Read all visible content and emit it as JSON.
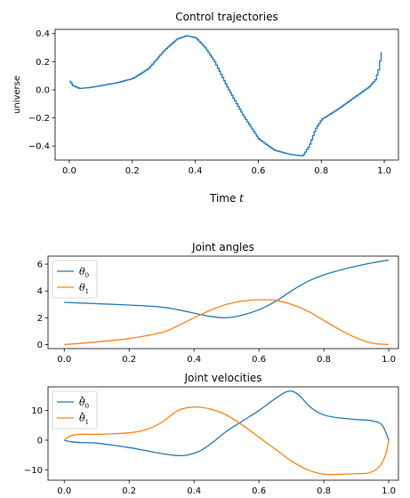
{
  "chart_data": [
    {
      "type": "line",
      "title": "Control trajectories",
      "xlabel": "Time",
      "xlabel_symbol": "t",
      "ylabel": "universe",
      "xlim": [
        -0.045,
        1.045
      ],
      "ylim": [
        -0.5,
        0.43
      ],
      "xticks": [
        0.0,
        0.2,
        0.4,
        0.6,
        0.8,
        1.0
      ],
      "yticks": [
        -0.4,
        -0.2,
        0.0,
        0.2,
        0.4
      ],
      "grid": false,
      "series": [
        {
          "color": "#1f77b4",
          "step": true,
          "x": [
            0.0,
            0.01,
            0.03,
            0.06,
            0.1,
            0.15,
            0.2,
            0.25,
            0.3,
            0.34,
            0.37,
            0.4,
            0.43,
            0.46,
            0.5,
            0.55,
            0.6,
            0.65,
            0.7,
            0.74,
            0.76,
            0.78,
            0.8,
            0.85,
            0.9,
            0.95,
            0.97,
            0.98,
            0.99
          ],
          "values": [
            0.06,
            0.03,
            0.01,
            0.015,
            0.03,
            0.05,
            0.08,
            0.15,
            0.28,
            0.36,
            0.385,
            0.37,
            0.3,
            0.2,
            0.02,
            -0.18,
            -0.35,
            -0.43,
            -0.46,
            -0.47,
            -0.4,
            -0.28,
            -0.21,
            -0.14,
            -0.06,
            0.02,
            0.07,
            0.14,
            0.27
          ]
        }
      ]
    },
    {
      "type": "line",
      "title": "Joint angles",
      "xlim": [
        -0.05,
        1.03
      ],
      "ylim": [
        -0.3,
        6.6
      ],
      "xticks": [
        0.0,
        0.2,
        0.4,
        0.6,
        0.8,
        1.0
      ],
      "yticks": [
        0,
        2,
        4,
        6
      ],
      "legend": "top-left",
      "grid": false,
      "series": [
        {
          "name": "θ",
          "subscript": "0",
          "color": "#1f77b4",
          "x": [
            0.0,
            0.1,
            0.2,
            0.3,
            0.35,
            0.4,
            0.45,
            0.5,
            0.55,
            0.6,
            0.65,
            0.7,
            0.75,
            0.8,
            0.85,
            0.9,
            0.95,
            1.0
          ],
          "values": [
            3.15,
            3.05,
            2.95,
            2.8,
            2.6,
            2.35,
            2.1,
            2.0,
            2.2,
            2.6,
            3.2,
            4.0,
            4.7,
            5.2,
            5.55,
            5.85,
            6.1,
            6.3
          ]
        },
        {
          "name": "θ",
          "subscript": "1",
          "color": "#ff7f0e",
          "x": [
            0.0,
            0.1,
            0.2,
            0.3,
            0.35,
            0.4,
            0.45,
            0.5,
            0.55,
            0.6,
            0.65,
            0.7,
            0.75,
            0.8,
            0.85,
            0.9,
            0.95,
            1.0
          ],
          "values": [
            0.0,
            0.2,
            0.45,
            0.9,
            1.4,
            2.0,
            2.55,
            3.0,
            3.25,
            3.35,
            3.3,
            3.0,
            2.5,
            1.8,
            1.1,
            0.5,
            0.1,
            0.0
          ]
        }
      ]
    },
    {
      "type": "line",
      "title": "Joint velocities",
      "xlim": [
        -0.05,
        1.03
      ],
      "ylim": [
        -13.5,
        18.0
      ],
      "xticks": [
        0.0,
        0.2,
        0.4,
        0.6,
        0.8,
        1.0
      ],
      "yticks": [
        -10,
        0,
        10
      ],
      "legend": "top-left",
      "grid": false,
      "series": [
        {
          "name": "θ",
          "subscript": "0",
          "dot": true,
          "color": "#1f77b4",
          "x": [
            0.0,
            0.02,
            0.05,
            0.1,
            0.2,
            0.3,
            0.35,
            0.38,
            0.42,
            0.46,
            0.5,
            0.55,
            0.6,
            0.65,
            0.69,
            0.72,
            0.76,
            0.8,
            0.85,
            0.9,
            0.95,
            0.98,
            1.0
          ],
          "values": [
            0.0,
            -0.5,
            -0.8,
            -1.0,
            -2.5,
            -4.5,
            -5.2,
            -5.0,
            -3.5,
            -0.5,
            3.0,
            6.5,
            10.0,
            14.0,
            16.5,
            15.5,
            11.0,
            8.5,
            7.5,
            7.0,
            6.5,
            5.0,
            0.0
          ]
        },
        {
          "name": "θ",
          "subscript": "1",
          "dot": true,
          "color": "#ff7f0e",
          "x": [
            0.0,
            0.02,
            0.05,
            0.1,
            0.2,
            0.25,
            0.3,
            0.35,
            0.4,
            0.45,
            0.5,
            0.55,
            0.6,
            0.65,
            0.7,
            0.75,
            0.8,
            0.85,
            0.9,
            0.94,
            0.97,
            0.99,
            1.0
          ],
          "values": [
            0.0,
            1.5,
            2.0,
            2.0,
            2.5,
            3.5,
            6.0,
            10.0,
            11.2,
            10.5,
            8.5,
            5.0,
            1.0,
            -3.0,
            -7.0,
            -10.0,
            -11.5,
            -11.5,
            -11.3,
            -11.0,
            -9.0,
            -5.0,
            0.0
          ]
        }
      ]
    }
  ]
}
